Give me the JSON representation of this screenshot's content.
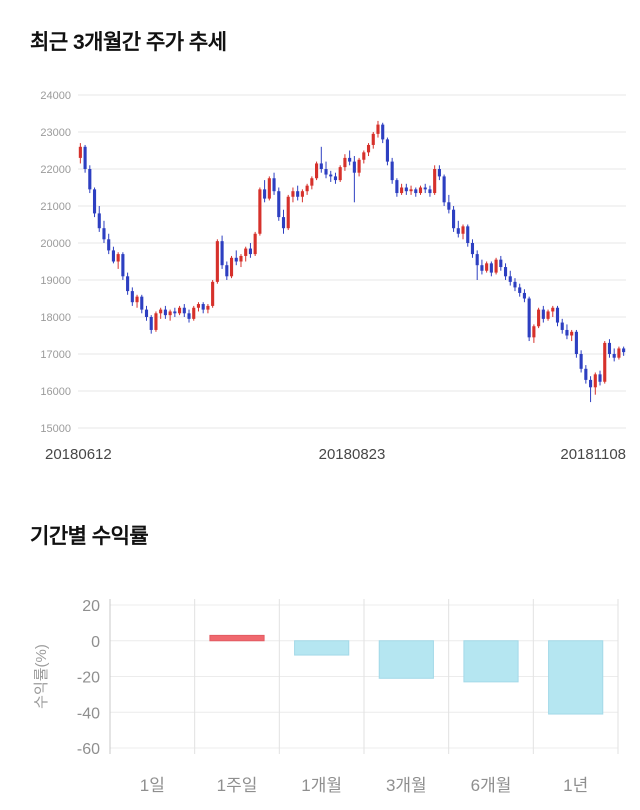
{
  "chart_data": [
    {
      "type": "candlestick",
      "title": "최근 3개월간 주가 추세",
      "ylim": [
        15000,
        24000
      ],
      "ytick_step": 1000,
      "x_labels": [
        "20180612",
        "20180823",
        "20181108"
      ],
      "up_color": "#d6312b",
      "down_color": "#2d3fc1",
      "grid": "horizontal",
      "candles": [
        [
          22300,
          22700,
          22150,
          22600
        ],
        [
          22600,
          22650,
          21900,
          22000
        ],
        [
          22000,
          22100,
          21350,
          21450
        ],
        [
          21450,
          21500,
          20700,
          20800
        ],
        [
          20800,
          21000,
          20300,
          20400
        ],
        [
          20400,
          20600,
          20000,
          20100
        ],
        [
          20100,
          20250,
          19700,
          19800
        ],
        [
          19800,
          19900,
          19450,
          19500
        ],
        [
          19500,
          19750,
          19300,
          19700
        ],
        [
          19700,
          19750,
          19000,
          19100
        ],
        [
          19100,
          19200,
          18600,
          18700
        ],
        [
          18700,
          18800,
          18300,
          18400
        ],
        [
          18400,
          18600,
          18250,
          18550
        ],
        [
          18550,
          18600,
          18100,
          18200
        ],
        [
          18200,
          18300,
          17900,
          18000
        ],
        [
          18000,
          18050,
          17550,
          17650
        ],
        [
          17650,
          18150,
          17600,
          18100
        ],
        [
          18100,
          18250,
          17950,
          18200
        ],
        [
          18200,
          18300,
          17950,
          18050
        ],
        [
          18050,
          18200,
          17900,
          18150
        ],
        [
          18150,
          18250,
          18000,
          18100
        ],
        [
          18100,
          18300,
          18050,
          18250
        ],
        [
          18250,
          18350,
          18000,
          18100
        ],
        [
          18100,
          18200,
          17850,
          17950
        ],
        [
          17950,
          18300,
          17900,
          18250
        ],
        [
          18250,
          18400,
          18150,
          18350
        ],
        [
          18350,
          18400,
          18100,
          18200
        ],
        [
          18200,
          18350,
          18100,
          18300
        ],
        [
          18300,
          19000,
          18250,
          18950
        ],
        [
          18950,
          20100,
          18900,
          20050
        ],
        [
          20050,
          20200,
          19300,
          19400
        ],
        [
          19400,
          19500,
          19000,
          19100
        ],
        [
          19100,
          19650,
          19050,
          19600
        ],
        [
          19600,
          19800,
          19400,
          19500
        ],
        [
          19500,
          19700,
          19350,
          19650
        ],
        [
          19650,
          19900,
          19500,
          19850
        ],
        [
          19850,
          20000,
          19600,
          19700
        ],
        [
          19700,
          20300,
          19650,
          20250
        ],
        [
          20250,
          21500,
          20200,
          21450
        ],
        [
          21450,
          21700,
          21100,
          21200
        ],
        [
          21200,
          21800,
          21150,
          21750
        ],
        [
          21750,
          21900,
          21300,
          21400
        ],
        [
          21400,
          21500,
          20600,
          20700
        ],
        [
          20700,
          20900,
          20250,
          20400
        ],
        [
          20400,
          21300,
          20350,
          21250
        ],
        [
          21250,
          21500,
          21100,
          21400
        ],
        [
          21400,
          21550,
          21150,
          21250
        ],
        [
          21250,
          21450,
          21100,
          21400
        ],
        [
          21400,
          21600,
          21300,
          21550
        ],
        [
          21550,
          21800,
          21450,
          21750
        ],
        [
          21750,
          22200,
          21700,
          22150
        ],
        [
          22150,
          22600,
          21900,
          22000
        ],
        [
          22000,
          22200,
          21750,
          21850
        ],
        [
          21850,
          21950,
          21650,
          21800
        ],
        [
          21800,
          21900,
          21600,
          21700
        ],
        [
          21700,
          22100,
          21650,
          22050
        ],
        [
          22050,
          22400,
          21950,
          22300
        ],
        [
          22300,
          22500,
          22100,
          22200
        ],
        [
          22200,
          22350,
          21100,
          21900
        ],
        [
          21900,
          22300,
          21800,
          22250
        ],
        [
          22250,
          22500,
          22150,
          22450
        ],
        [
          22450,
          22700,
          22350,
          22650
        ],
        [
          22650,
          23000,
          22550,
          22950
        ],
        [
          22950,
          23300,
          22850,
          23200
        ],
        [
          23200,
          23250,
          22700,
          22800
        ],
        [
          22800,
          22850,
          22100,
          22200
        ],
        [
          22200,
          22300,
          21600,
          21700
        ],
        [
          21700,
          21750,
          21250,
          21350
        ],
        [
          21350,
          21600,
          21300,
          21500
        ],
        [
          21500,
          21600,
          21300,
          21400
        ],
        [
          21400,
          21550,
          21300,
          21450
        ],
        [
          21450,
          21500,
          21250,
          21350
        ],
        [
          21350,
          21550,
          21300,
          21500
        ],
        [
          21500,
          21600,
          21350,
          21450
        ],
        [
          21450,
          21550,
          21250,
          21350
        ],
        [
          21350,
          22100,
          21300,
          22000
        ],
        [
          22000,
          22100,
          21700,
          21800
        ],
        [
          21800,
          21850,
          21000,
          21100
        ],
        [
          21100,
          21300,
          20800,
          20900
        ],
        [
          20900,
          21000,
          20300,
          20400
        ],
        [
          20400,
          20600,
          20150,
          20250
        ],
        [
          20250,
          20500,
          20100,
          20450
        ],
        [
          20450,
          20500,
          19900,
          20000
        ],
        [
          20000,
          20100,
          19600,
          19700
        ],
        [
          19700,
          19800,
          19000,
          19400
        ],
        [
          19400,
          19550,
          19150,
          19250
        ],
        [
          19250,
          19500,
          19200,
          19450
        ],
        [
          19450,
          19500,
          19100,
          19200
        ],
        [
          19200,
          19600,
          19150,
          19550
        ],
        [
          19550,
          19650,
          19250,
          19350
        ],
        [
          19350,
          19450,
          19000,
          19100
        ],
        [
          19100,
          19250,
          18850,
          18950
        ],
        [
          18950,
          19050,
          18700,
          18800
        ],
        [
          18800,
          18900,
          18550,
          18650
        ],
        [
          18650,
          18750,
          18400,
          18500
        ],
        [
          18500,
          18550,
          17350,
          17450
        ],
        [
          17450,
          17800,
          17300,
          17750
        ],
        [
          17750,
          18250,
          17700,
          18200
        ],
        [
          18200,
          18300,
          17850,
          17950
        ],
        [
          17950,
          18200,
          17900,
          18150
        ],
        [
          18150,
          18300,
          18000,
          18250
        ],
        [
          18250,
          18300,
          17750,
          17850
        ],
        [
          17850,
          17950,
          17550,
          17650
        ],
        [
          17650,
          17800,
          17400,
          17500
        ],
        [
          17500,
          17650,
          17350,
          17600
        ],
        [
          17600,
          17650,
          16900,
          17000
        ],
        [
          17000,
          17100,
          16500,
          16600
        ],
        [
          16600,
          16700,
          16200,
          16300
        ],
        [
          16300,
          16400,
          15700,
          16100
        ],
        [
          16100,
          16500,
          15900,
          16450
        ],
        [
          16450,
          16550,
          16150,
          16250
        ],
        [
          16250,
          17350,
          16200,
          17300
        ],
        [
          17300,
          17400,
          16900,
          17000
        ],
        [
          17000,
          17150,
          16800,
          16900
        ],
        [
          16900,
          17200,
          16850,
          17150
        ],
        [
          17150,
          17200,
          16950,
          17050
        ]
      ]
    },
    {
      "type": "bar",
      "title": "기간별 수익률",
      "ylabel": "수익률(%)",
      "categories": [
        "1일",
        "1주일",
        "1개월",
        "3개월",
        "6개월",
        "1년"
      ],
      "values": [
        0,
        3,
        -8,
        -21,
        -23,
        -41
      ],
      "ylim": [
        -60,
        20
      ],
      "ytick_step": 20,
      "positive_color": "#f0686e",
      "positive_stroke": "#e25b62",
      "negative_color": "#b5e6f1",
      "negative_stroke": "#a3d9e8",
      "grid": "both",
      "legend": "none"
    }
  ]
}
